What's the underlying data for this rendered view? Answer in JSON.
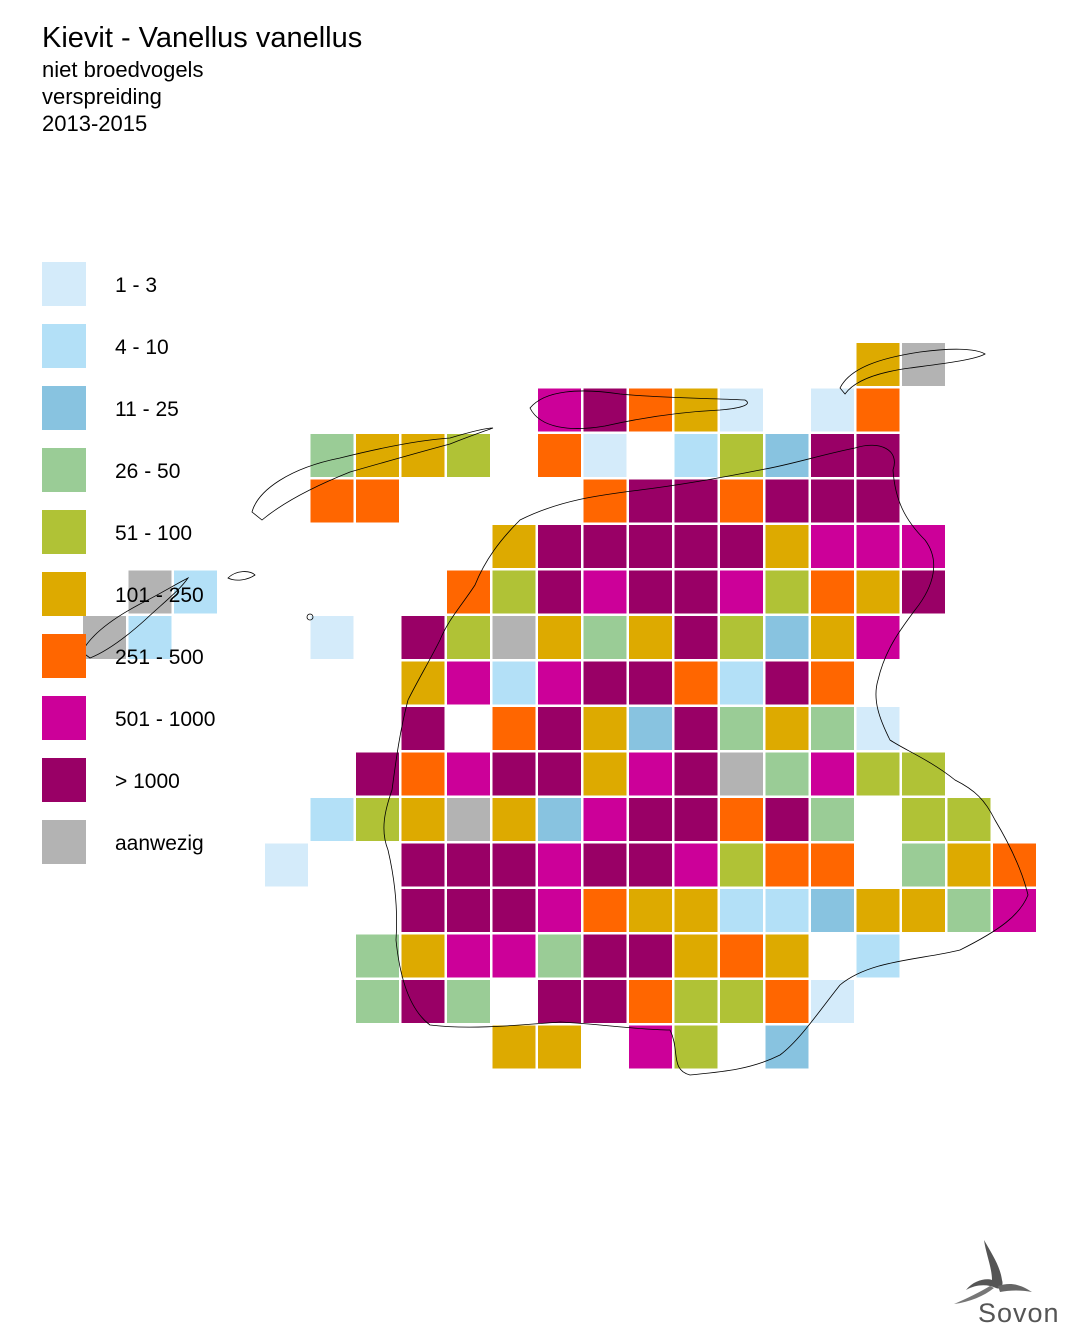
{
  "header": {
    "title": "Kievit - Vanellus vanellus",
    "line1": "niet broedvogels",
    "line2": "verspreiding",
    "line3": "2013-2015"
  },
  "legend": [
    {
      "key": "a",
      "label": "1 - 3",
      "color": "#d4ebfa"
    },
    {
      "key": "b",
      "label": "4 - 10",
      "color": "#b3e0f7"
    },
    {
      "key": "c",
      "label": "11 - 25",
      "color": "#88c3e0"
    },
    {
      "key": "d",
      "label": "26 - 50",
      "color": "#9acc96"
    },
    {
      "key": "e",
      "label": "51 - 100",
      "color": "#b0c236"
    },
    {
      "key": "f",
      "label": "101 - 250",
      "color": "#ddaa00"
    },
    {
      "key": "g",
      "label": "251 - 500",
      "color": "#ff6600"
    },
    {
      "key": "h",
      "label": "501 - 1000",
      "color": "#cc0099"
    },
    {
      "key": "i",
      "label": "> 1000",
      "color": "#990066"
    },
    {
      "key": "j",
      "label": "aanwezig",
      "color": "#b3b3b3"
    }
  ],
  "grid": {
    "origin_col": 0,
    "rows": [
      {
        "r": 0,
        "cells": [
          [
            19,
            "f"
          ],
          [
            20,
            "j"
          ]
        ]
      },
      {
        "r": 1,
        "cells": [
          [
            12,
            "h"
          ],
          [
            13,
            "i"
          ],
          [
            14,
            "g"
          ],
          [
            15,
            "f"
          ],
          [
            16,
            "a"
          ],
          [
            18,
            "a"
          ],
          [
            19,
            "g"
          ]
        ]
      },
      {
        "r": 2,
        "cells": [
          [
            7,
            "d"
          ],
          [
            8,
            "f"
          ],
          [
            9,
            "f"
          ],
          [
            10,
            "e"
          ],
          [
            12,
            "g"
          ],
          [
            13,
            "a"
          ],
          [
            15,
            "b"
          ],
          [
            16,
            "e"
          ],
          [
            17,
            "c"
          ],
          [
            18,
            "i"
          ],
          [
            19,
            "i"
          ]
        ]
      },
      {
        "r": 3,
        "cells": [
          [
            7,
            "g"
          ],
          [
            8,
            "g"
          ],
          [
            13,
            "g"
          ],
          [
            14,
            "i"
          ],
          [
            15,
            "i"
          ],
          [
            16,
            "g"
          ],
          [
            17,
            "i"
          ],
          [
            18,
            "i"
          ],
          [
            19,
            "i"
          ]
        ]
      },
      {
        "r": 4,
        "cells": [
          [
            11,
            "f"
          ],
          [
            12,
            "i"
          ],
          [
            13,
            "i"
          ],
          [
            14,
            "i"
          ],
          [
            15,
            "i"
          ],
          [
            16,
            "i"
          ],
          [
            17,
            "f"
          ],
          [
            18,
            "h"
          ],
          [
            19,
            "h"
          ],
          [
            20,
            "h"
          ]
        ]
      },
      {
        "r": 5,
        "cells": [
          [
            3,
            "j"
          ],
          [
            4,
            "b"
          ],
          [
            10,
            "g"
          ],
          [
            11,
            "e"
          ],
          [
            12,
            "i"
          ],
          [
            13,
            "h"
          ],
          [
            14,
            "i"
          ],
          [
            15,
            "i"
          ],
          [
            16,
            "h"
          ],
          [
            17,
            "e"
          ],
          [
            18,
            "g"
          ],
          [
            19,
            "f"
          ],
          [
            20,
            "i"
          ]
        ]
      },
      {
        "r": 6,
        "cells": [
          [
            2,
            "j"
          ],
          [
            3,
            "b"
          ],
          [
            7,
            "a"
          ],
          [
            9,
            "i"
          ],
          [
            10,
            "e"
          ],
          [
            11,
            "j"
          ],
          [
            12,
            "f"
          ],
          [
            13,
            "d"
          ],
          [
            14,
            "f"
          ],
          [
            15,
            "i"
          ],
          [
            16,
            "e"
          ],
          [
            17,
            "c"
          ],
          [
            18,
            "f"
          ],
          [
            19,
            "h"
          ]
        ]
      },
      {
        "r": 7,
        "cells": [
          [
            9,
            "f"
          ],
          [
            10,
            "h"
          ],
          [
            11,
            "b"
          ],
          [
            12,
            "h"
          ],
          [
            13,
            "i"
          ],
          [
            14,
            "i"
          ],
          [
            15,
            "g"
          ],
          [
            16,
            "b"
          ],
          [
            17,
            "i"
          ],
          [
            18,
            "g"
          ]
        ]
      },
      {
        "r": 8,
        "cells": [
          [
            9,
            "i"
          ],
          [
            11,
            "g"
          ],
          [
            12,
            "i"
          ],
          [
            13,
            "f"
          ],
          [
            14,
            "c"
          ],
          [
            15,
            "i"
          ],
          [
            16,
            "d"
          ],
          [
            17,
            "f"
          ],
          [
            18,
            "d"
          ],
          [
            19,
            "a"
          ]
        ]
      },
      {
        "r": 9,
        "cells": [
          [
            8,
            "i"
          ],
          [
            9,
            "g"
          ],
          [
            10,
            "h"
          ],
          [
            11,
            "i"
          ],
          [
            12,
            "i"
          ],
          [
            13,
            "f"
          ],
          [
            14,
            "h"
          ],
          [
            15,
            "i"
          ],
          [
            16,
            "j"
          ],
          [
            17,
            "d"
          ],
          [
            18,
            "h"
          ],
          [
            19,
            "e"
          ],
          [
            20,
            "e"
          ]
        ]
      },
      {
        "r": 10,
        "cells": [
          [
            7,
            "b"
          ],
          [
            8,
            "e"
          ],
          [
            9,
            "f"
          ],
          [
            10,
            "j"
          ],
          [
            11,
            "f"
          ],
          [
            12,
            "c"
          ],
          [
            13,
            "h"
          ],
          [
            14,
            "i"
          ],
          [
            15,
            "i"
          ],
          [
            16,
            "g"
          ],
          [
            17,
            "i"
          ],
          [
            18,
            "d"
          ],
          [
            20,
            "e"
          ],
          [
            21,
            "e"
          ]
        ]
      },
      {
        "r": 11,
        "cells": [
          [
            6,
            "a"
          ],
          [
            9,
            "i"
          ],
          [
            10,
            "i"
          ],
          [
            11,
            "i"
          ],
          [
            12,
            "h"
          ],
          [
            13,
            "i"
          ],
          [
            14,
            "i"
          ],
          [
            15,
            "h"
          ],
          [
            16,
            "e"
          ],
          [
            17,
            "g"
          ],
          [
            18,
            "g"
          ],
          [
            20,
            "d"
          ],
          [
            21,
            "f"
          ],
          [
            22,
            "g"
          ]
        ]
      },
      {
        "r": 12,
        "cells": [
          [
            9,
            "i"
          ],
          [
            10,
            "i"
          ],
          [
            11,
            "i"
          ],
          [
            12,
            "h"
          ],
          [
            13,
            "g"
          ],
          [
            14,
            "f"
          ],
          [
            15,
            "f"
          ],
          [
            16,
            "b"
          ],
          [
            17,
            "b"
          ],
          [
            18,
            "c"
          ],
          [
            19,
            "f"
          ],
          [
            20,
            "f"
          ],
          [
            21,
            "d"
          ],
          [
            22,
            "h"
          ]
        ]
      },
      {
        "r": 13,
        "cells": [
          [
            8,
            "d"
          ],
          [
            9,
            "f"
          ],
          [
            10,
            "h"
          ],
          [
            11,
            "h"
          ],
          [
            12,
            "d"
          ],
          [
            13,
            "i"
          ],
          [
            14,
            "i"
          ],
          [
            15,
            "f"
          ],
          [
            16,
            "g"
          ],
          [
            17,
            "f"
          ],
          [
            19,
            "b"
          ]
        ]
      },
      {
        "r": 14,
        "cells": [
          [
            8,
            "d"
          ],
          [
            9,
            "i"
          ],
          [
            10,
            "d"
          ],
          [
            12,
            "i"
          ],
          [
            13,
            "i"
          ],
          [
            14,
            "g"
          ],
          [
            15,
            "e"
          ],
          [
            16,
            "e"
          ],
          [
            17,
            "g"
          ],
          [
            18,
            "a"
          ]
        ]
      },
      {
        "r": 15,
        "cells": [
          [
            11,
            "f"
          ],
          [
            12,
            "f"
          ],
          [
            14,
            "h"
          ],
          [
            15,
            "e"
          ],
          [
            17,
            "c"
          ]
        ]
      }
    ]
  },
  "logo": {
    "text": "Sovon"
  }
}
